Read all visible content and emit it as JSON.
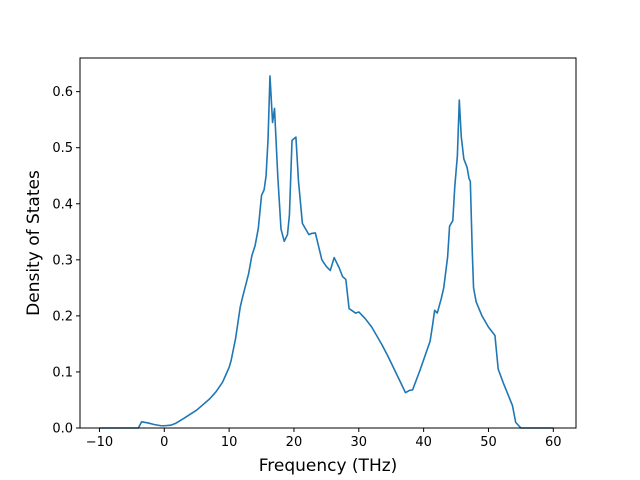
{
  "chart_data": {
    "type": "line",
    "title": "",
    "xlabel": "Frequency (THz)",
    "ylabel": "Density of States",
    "xlim": [
      -13,
      63.5
    ],
    "ylim": [
      0,
      0.66
    ],
    "xticks": [
      -10,
      0,
      10,
      20,
      30,
      40,
      50,
      60
    ],
    "xtick_labels": [
      "−10",
      "0",
      "10",
      "20",
      "30",
      "40",
      "50",
      "60"
    ],
    "yticks": [
      0.0,
      0.1,
      0.2,
      0.3,
      0.4,
      0.5,
      0.6
    ],
    "ytick_labels": [
      "0.0",
      "0.1",
      "0.2",
      "0.3",
      "0.4",
      "0.5",
      "0.6"
    ],
    "grid": false,
    "legend": "none",
    "series": [
      {
        "color": "#1f77b4",
        "x": [
          -10,
          -4,
          -3.5,
          -2.5,
          -1.5,
          -0.5,
          0,
          1,
          1.7,
          3,
          5,
          7,
          8,
          9,
          9.5,
          10,
          10.3,
          11,
          11.7,
          12,
          13,
          13.5,
          14,
          14.5,
          15,
          15.4,
          15.7,
          16,
          16.3,
          16.7,
          17,
          17.5,
          18,
          18.5,
          19,
          19.3,
          19.7,
          20.3,
          20.7,
          21.3,
          22.3,
          22.7,
          23.3,
          24.3,
          25,
          25.6,
          26.2,
          27,
          27.5,
          28,
          28.5,
          29.5,
          30,
          31,
          32,
          33.5,
          34.5,
          36.5,
          37.2,
          37.8,
          38.3,
          39.5,
          41,
          41.4,
          41.7,
          42.1,
          42.7,
          43.1,
          43.7,
          44,
          44.5,
          44.8,
          45.2,
          45.5,
          45.8,
          46.2,
          46.7,
          47,
          47.2,
          47.5,
          47.7,
          48.1,
          49,
          50,
          51,
          51.5,
          52.3,
          53,
          53.7,
          54.2,
          55,
          60
        ],
        "values": [
          0,
          0,
          0.011,
          0.009,
          0.006,
          0.004,
          0.004,
          0.005,
          0.008,
          0.017,
          0.032,
          0.052,
          0.065,
          0.082,
          0.095,
          0.108,
          0.12,
          0.16,
          0.215,
          0.23,
          0.275,
          0.307,
          0.325,
          0.356,
          0.415,
          0.425,
          0.45,
          0.515,
          0.628,
          0.545,
          0.57,
          0.45,
          0.355,
          0.333,
          0.345,
          0.38,
          0.513,
          0.519,
          0.44,
          0.365,
          0.345,
          0.347,
          0.348,
          0.3,
          0.288,
          0.281,
          0.304,
          0.285,
          0.27,
          0.265,
          0.213,
          0.205,
          0.207,
          0.195,
          0.18,
          0.15,
          0.128,
          0.08,
          0.063,
          0.067,
          0.068,
          0.105,
          0.155,
          0.185,
          0.21,
          0.205,
          0.23,
          0.25,
          0.305,
          0.36,
          0.37,
          0.43,
          0.485,
          0.585,
          0.52,
          0.48,
          0.465,
          0.445,
          0.44,
          0.315,
          0.25,
          0.225,
          0.2,
          0.18,
          0.165,
          0.105,
          0.08,
          0.06,
          0.04,
          0.01,
          0,
          0
        ]
      }
    ]
  }
}
